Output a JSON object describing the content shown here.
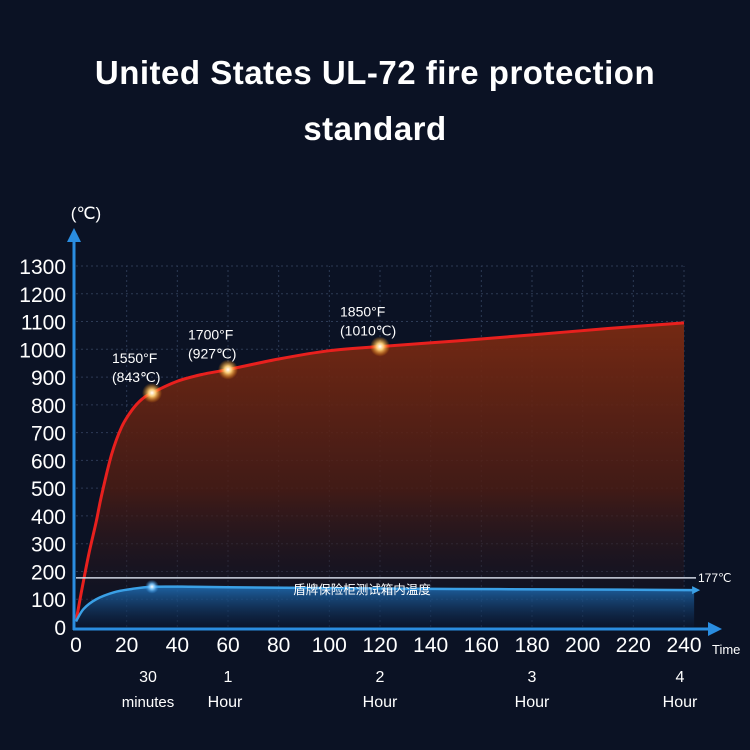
{
  "title": {
    "line1": "United States UL-72 fire protection",
    "line2": "standard"
  },
  "colors": {
    "background": "#0b1224",
    "furnace_curve": "#e8201e",
    "inner_curve": "#3aa0e6",
    "axis": "#2a8de0",
    "threshold_line": "#cfd6e2"
  },
  "chart_data": {
    "type": "line",
    "ylabel": "(℃)",
    "xlabel": "Time",
    "ylim": [
      0,
      1300
    ],
    "xlim": [
      0,
      240
    ],
    "y_ticks": [
      0,
      100,
      200,
      300,
      400,
      500,
      600,
      700,
      800,
      900,
      1000,
      1100,
      1200,
      1300
    ],
    "x_ticks": [
      0,
      20,
      40,
      60,
      80,
      100,
      120,
      140,
      160,
      180,
      200,
      220,
      240
    ],
    "grid": true,
    "hour_labels": [
      {
        "x": 30,
        "top": "30",
        "bottom": "minutes"
      },
      {
        "x": 60,
        "top": "1",
        "bottom": "Hour"
      },
      {
        "x": 120,
        "top": "2",
        "bottom": "Hour"
      },
      {
        "x": 180,
        "top": "3",
        "bottom": "Hour"
      },
      {
        "x": 240,
        "top": "4",
        "bottom": "Hour"
      }
    ],
    "series": [
      {
        "points": [
          {
            "x": 0,
            "y": 20
          },
          {
            "x": 2,
            "y": 120
          },
          {
            "x": 5,
            "y": 260
          },
          {
            "x": 8,
            "y": 380
          },
          {
            "x": 10,
            "y": 470
          },
          {
            "x": 14,
            "y": 620
          },
          {
            "x": 18,
            "y": 720
          },
          {
            "x": 22,
            "y": 780
          },
          {
            "x": 26,
            "y": 820
          },
          {
            "x": 30,
            "y": 843
          },
          {
            "x": 40,
            "y": 885
          },
          {
            "x": 50,
            "y": 910
          },
          {
            "x": 60,
            "y": 927
          },
          {
            "x": 80,
            "y": 965
          },
          {
            "x": 100,
            "y": 995
          },
          {
            "x": 120,
            "y": 1010
          },
          {
            "x": 150,
            "y": 1030
          },
          {
            "x": 180,
            "y": 1052
          },
          {
            "x": 210,
            "y": 1075
          },
          {
            "x": 240,
            "y": 1095
          }
        ]
      },
      {
        "name": "盾牌保险柜测试箱内温度",
        "points": [
          {
            "x": 0,
            "y": 20
          },
          {
            "x": 3,
            "y": 65
          },
          {
            "x": 8,
            "y": 100
          },
          {
            "x": 15,
            "y": 125
          },
          {
            "x": 22,
            "y": 137
          },
          {
            "x": 30,
            "y": 145
          },
          {
            "x": 45,
            "y": 145
          },
          {
            "x": 60,
            "y": 143
          },
          {
            "x": 100,
            "y": 140
          },
          {
            "x": 150,
            "y": 137
          },
          {
            "x": 200,
            "y": 135
          },
          {
            "x": 244,
            "y": 133
          }
        ]
      }
    ],
    "threshold": {
      "y": 177,
      "label": "177℃"
    },
    "annotations": [
      {
        "x": 30,
        "y": 843,
        "line1": "1550°F",
        "line2": "(843℃)"
      },
      {
        "x": 60,
        "y": 927,
        "line1": "1700°F",
        "line2": "(927℃)"
      },
      {
        "x": 120,
        "y": 1010,
        "line1": "1850°F",
        "line2": "(1010℃)"
      }
    ],
    "inner_marker": {
      "x": 30,
      "y": 145
    }
  }
}
